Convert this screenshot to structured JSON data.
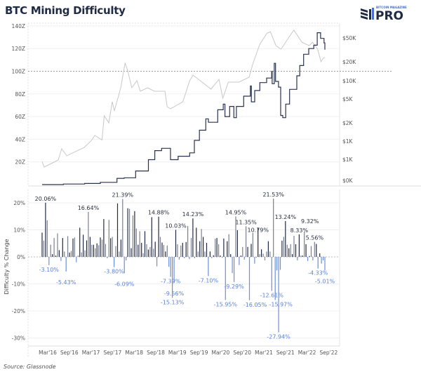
{
  "title": "BTC Mining Difficulty",
  "logo": {
    "small_text": "BITCOIN MAGAZINE",
    "big_text": "PRO"
  },
  "source": "Source: Glassnode",
  "colors": {
    "difficulty_line": "#2a3350",
    "price_line": "#c8c8c8",
    "bar_dark": "#232a45",
    "bar_gray": "#7b808d",
    "bar_negative": "#6b8fdc",
    "negative_label": "#5b82d6",
    "title": "#1f2a44"
  },
  "chart_data": [
    {
      "type": "line",
      "panel": "top",
      "left_axis": {
        "ticks": [
          "20Z",
          "40Z",
          "60Z",
          "80Z",
          "100Z",
          "120Z",
          "140Z"
        ],
        "ylim": [
          0,
          140
        ],
        "reference_line": 100
      },
      "right_axis": {
        "scale": "log",
        "ticks": [
          "$50K",
          "$20K",
          "$10K",
          "$5K",
          "$2K",
          "$1K",
          "$1K",
          "$0K"
        ]
      },
      "grid": true,
      "series": [
        {
          "axis": "left",
          "points": [
            [
              2016.0,
              0
            ],
            [
              2016.5,
              0.5
            ],
            [
              2017.0,
              1
            ],
            [
              2017.37,
              2
            ],
            [
              2017.76,
              5.5
            ],
            [
              2017.93,
              6
            ],
            [
              2018.2,
              12
            ],
            [
              2018.5,
              22
            ],
            [
              2018.65,
              30
            ],
            [
              2018.81,
              32
            ],
            [
              2019.02,
              22
            ],
            [
              2019.2,
              25
            ],
            [
              2019.47,
              28
            ],
            [
              2019.58,
              39
            ],
            [
              2019.7,
              48
            ],
            [
              2019.85,
              58
            ],
            [
              2019.91,
              55
            ],
            [
              2020.13,
              66
            ],
            [
              2020.26,
              71
            ],
            [
              2020.3,
              60
            ],
            [
              2020.41,
              69
            ],
            [
              2020.51,
              59
            ],
            [
              2020.57,
              69
            ],
            [
              2020.74,
              78
            ],
            [
              2020.9,
              87
            ],
            [
              2020.92,
              73
            ],
            [
              2021.0,
              83
            ],
            [
              2021.12,
              90
            ],
            [
              2021.28,
              94
            ],
            [
              2021.4,
              100
            ],
            [
              2021.41,
              89
            ],
            [
              2021.46,
              107
            ],
            [
              2021.49,
              91
            ],
            [
              2021.56,
              86
            ],
            [
              2021.61,
              61
            ],
            [
              2021.66,
              59
            ],
            [
              2021.73,
              71
            ],
            [
              2021.82,
              84
            ],
            [
              2021.99,
              96
            ],
            [
              2022.06,
              105
            ],
            [
              2022.15,
              115
            ],
            [
              2022.27,
              120
            ],
            [
              2022.39,
              123
            ],
            [
              2022.47,
              134
            ],
            [
              2022.55,
              129
            ],
            [
              2022.63,
              125
            ],
            [
              2022.65,
              119
            ]
          ]
        },
        {
          "axis": "right",
          "points": [
            [
              2016.0,
              490
            ],
            [
              2016.05,
              400
            ],
            [
              2016.38,
              520
            ],
            [
              2016.46,
              790
            ],
            [
              2016.58,
              610
            ],
            [
              2016.99,
              830
            ],
            [
              2017.16,
              1080
            ],
            [
              2017.24,
              1300
            ],
            [
              2017.41,
              1100
            ],
            [
              2017.46,
              2700
            ],
            [
              2017.57,
              2080
            ],
            [
              2017.65,
              4560
            ],
            [
              2017.7,
              3250
            ],
            [
              2017.85,
              7700
            ],
            [
              2017.95,
              19200
            ],
            [
              2018.01,
              14800
            ],
            [
              2018.11,
              7700
            ],
            [
              2018.23,
              10000
            ],
            [
              2018.31,
              6760
            ],
            [
              2018.48,
              7700
            ],
            [
              2018.64,
              6760
            ],
            [
              2018.89,
              6760
            ],
            [
              2018.94,
              3800
            ],
            [
              2019.02,
              3510
            ],
            [
              2019.31,
              4560
            ],
            [
              2019.47,
              10000
            ],
            [
              2019.55,
              12300
            ],
            [
              2019.72,
              10000
            ],
            [
              2019.97,
              7300
            ],
            [
              2020.16,
              10500
            ],
            [
              2020.25,
              5200
            ],
            [
              2020.38,
              9500
            ],
            [
              2020.63,
              9500
            ],
            [
              2020.87,
              11400
            ],
            [
              2020.96,
              19200
            ],
            [
              2021.12,
              39000
            ],
            [
              2021.29,
              59000
            ],
            [
              2021.37,
              62000
            ],
            [
              2021.5,
              37000
            ],
            [
              2021.62,
              32400
            ],
            [
              2021.78,
              48000
            ],
            [
              2021.92,
              66000
            ],
            [
              2022.11,
              42000
            ],
            [
              2022.28,
              37000
            ],
            [
              2022.36,
              42000
            ],
            [
              2022.48,
              32400
            ],
            [
              2022.56,
              20300
            ],
            [
              2022.61,
              23100
            ],
            [
              2022.65,
              23700
            ]
          ]
        }
      ]
    },
    {
      "type": "bar",
      "panel": "bottom",
      "ylabel": "Difficulty % Change",
      "y_ticks": [
        "20%",
        "10%",
        "0%",
        "-10%",
        "-20%",
        "-30%"
      ],
      "ylim": [
        -33,
        23
      ],
      "x_ticks": [
        "Mar'16",
        "Sep'16",
        "Mar'17",
        "Sep'17",
        "Mar'18",
        "Sep'18",
        "Mar'19",
        "Sep'19",
        "Mar'20",
        "Sep'20",
        "Mar'21",
        "Sep'21",
        "Mar'22",
        "Sep'22"
      ],
      "grid": true,
      "values": [
        9,
        6,
        20.06,
        13.5,
        -3.1,
        4.5,
        1,
        7,
        0.5,
        8.7,
        2.5,
        -1.5,
        7,
        2,
        -5.43,
        7.7,
        1.6,
        2.2,
        6.8,
        7.2,
        -2,
        0.5,
        10.8,
        1.7,
        8.2,
        2.4,
        6.1,
        16.64,
        7.4,
        4.5,
        4.5,
        3.2,
        5,
        4.3,
        7.2,
        6.4,
        14,
        4.8,
        -0.5,
        13.7,
        6.9,
        7.4,
        -3.8,
        4,
        19.8,
        2,
        6.4,
        21.39,
        -6.09,
        -1.3,
        18,
        17.8,
        3.2,
        15.3,
        16.9,
        10.5,
        4.5,
        9.5,
        5.2,
        1.4,
        9.5,
        4.7,
        2.7,
        3.7,
        14.7,
        3,
        5.6,
        -3.5,
        14.88,
        7.4,
        5.3,
        4.4,
        2,
        4.2,
        -3.7,
        -7.39,
        -15.13,
        -9.56,
        10.03,
        4.7,
        -1,
        4.2,
        5.2,
        -0.5,
        5.5,
        11.4,
        -0.8,
        7,
        14.23,
        -0.5,
        10.8,
        2,
        5.8,
        10.3,
        7.4,
        2,
        5.2,
        -7.1,
        2,
        -0.5,
        0.6,
        6.7,
        7,
        4.7,
        0.5,
        -0.3,
        6.8,
        -15.95,
        5.8,
        8.4,
        1,
        -6,
        -9.29,
        14.95,
        9.9,
        -3,
        0.5,
        3.7,
        -1,
        11.35,
        3.7,
        -16.05,
        4.8,
        8.9,
        -2.5,
        -0.3,
        10.79,
        1,
        2.8,
        1.2,
        -1.3,
        2,
        5.8,
        2,
        -12.61,
        21.53,
        -15.97,
        -5,
        -27.94,
        -4.8,
        6,
        7.4,
        13.24,
        4.5,
        3.2,
        4.7,
        1,
        7.8,
        4.7,
        -1.3,
        8.33,
        0.5,
        0.5,
        9.32,
        4.7,
        -1.5,
        0.3,
        4,
        -1.3,
        5.56,
        4.8,
        -4.33,
        1.3,
        -2.5,
        -1.3,
        -5.01
      ],
      "annotations": [
        "20.06%",
        "-3.10%",
        "-5.43%",
        "16.64%",
        "-3.80%",
        "21.39%",
        "-6.09%",
        "14.88%",
        "-7.39%",
        "-15.13%",
        "-9.56%",
        "10.03%",
        "14.23%",
        "-7.10%",
        "-15.95%",
        "-9.29%",
        "14.95%",
        "11.35%",
        "-16.05%",
        "10.79%",
        "-12.61%",
        "21.53%",
        "-15.97%",
        "-27.94%",
        "13.24%",
        "8.33%",
        "9.32%",
        "5.56%",
        "-4.33%",
        "-5.01%"
      ]
    }
  ]
}
